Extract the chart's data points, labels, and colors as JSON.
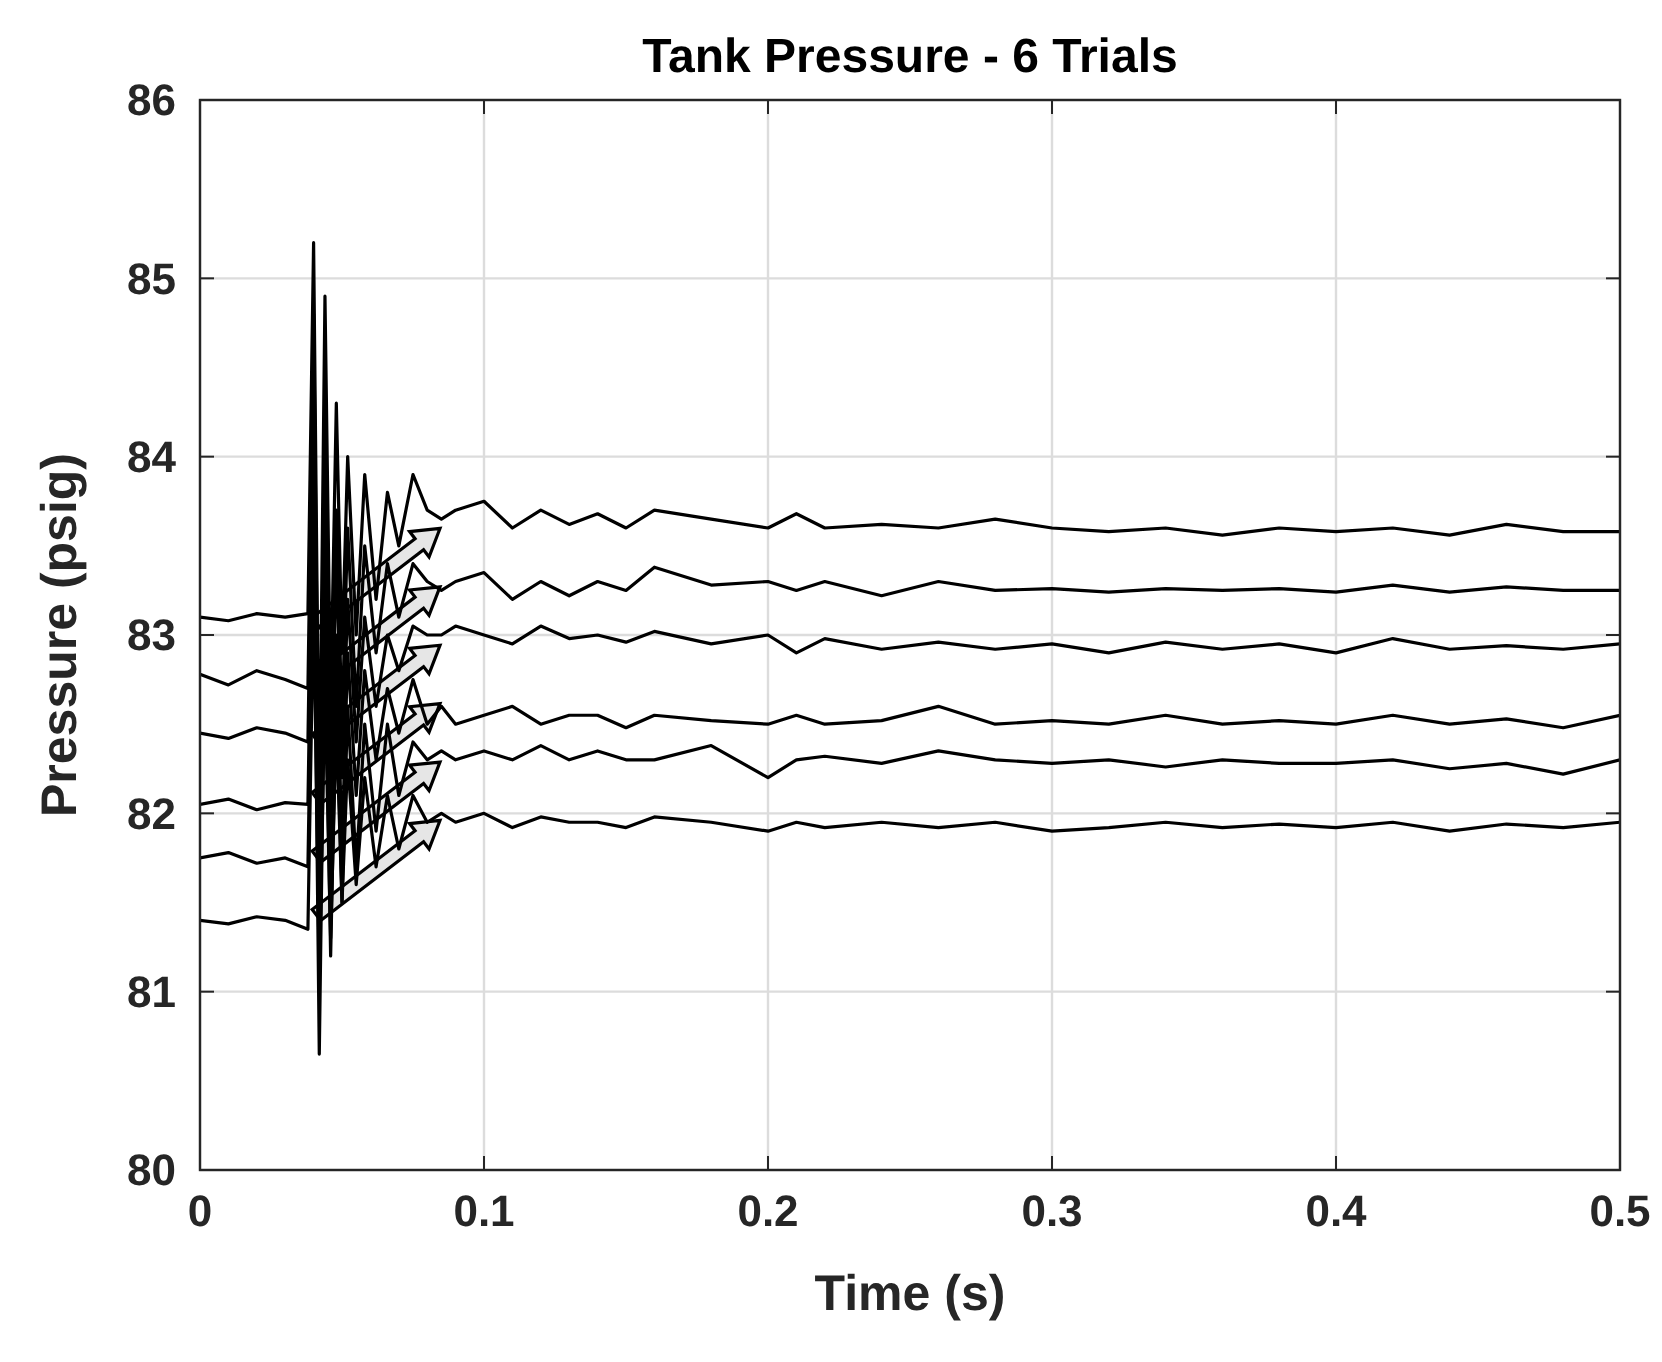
{
  "chart_data": {
    "type": "line",
    "title": "Tank Pressure - 6 Trials",
    "xlabel": "Time (s)",
    "ylabel": "Pressure (psig)",
    "xlim": [
      0,
      0.5
    ],
    "xticks": [
      0,
      0.1,
      0.2,
      0.3,
      0.4,
      0.5
    ],
    "ylim": [
      80,
      86
    ],
    "yticks": [
      80,
      81,
      82,
      83,
      84,
      85,
      86
    ],
    "grid": true,
    "line_style": "solid",
    "x": [
      0,
      0.01,
      0.02,
      0.03,
      0.038,
      0.04,
      0.042,
      0.044,
      0.046,
      0.048,
      0.05,
      0.052,
      0.055,
      0.058,
      0.062,
      0.066,
      0.07,
      0.075,
      0.08,
      0.085,
      0.09,
      0.1,
      0.11,
      0.12,
      0.13,
      0.14,
      0.15,
      0.16,
      0.18,
      0.2,
      0.21,
      0.22,
      0.24,
      0.26,
      0.28,
      0.3,
      0.32,
      0.34,
      0.36,
      0.38,
      0.4,
      0.42,
      0.44,
      0.46,
      0.48,
      0.5
    ],
    "series": [
      {
        "color": "#000000",
        "values": [
          83.1,
          83.08,
          83.12,
          83.1,
          83.12,
          85.2,
          82.0,
          84.9,
          82.6,
          84.3,
          82.9,
          84.0,
          83.0,
          83.9,
          83.2,
          83.8,
          83.5,
          83.9,
          83.7,
          83.65,
          83.7,
          83.75,
          83.6,
          83.7,
          83.62,
          83.68,
          83.6,
          83.7,
          83.65,
          83.6,
          83.68,
          83.6,
          83.62,
          83.6,
          83.65,
          83.6,
          83.58,
          83.6,
          83.56,
          83.6,
          83.58,
          83.6,
          83.56,
          83.62,
          83.58,
          83.58
        ]
      },
      {
        "color": "#000000",
        "values": [
          82.78,
          82.72,
          82.8,
          82.75,
          82.7,
          84.8,
          81.8,
          84.3,
          82.2,
          83.7,
          82.5,
          83.6,
          82.6,
          83.5,
          82.9,
          83.4,
          83.1,
          83.4,
          83.3,
          83.25,
          83.3,
          83.35,
          83.2,
          83.3,
          83.22,
          83.3,
          83.25,
          83.38,
          83.28,
          83.3,
          83.25,
          83.3,
          83.22,
          83.3,
          83.25,
          83.26,
          83.24,
          83.26,
          83.25,
          83.26,
          83.24,
          83.28,
          83.24,
          83.27,
          83.25,
          83.25
        ]
      },
      {
        "color": "#000000",
        "values": [
          82.45,
          82.42,
          82.48,
          82.45,
          82.4,
          84.4,
          81.4,
          83.8,
          81.9,
          83.5,
          82.2,
          83.2,
          82.4,
          83.1,
          82.6,
          83.0,
          82.8,
          83.05,
          83.0,
          83.0,
          83.05,
          83.0,
          82.95,
          83.05,
          82.98,
          83.0,
          82.96,
          83.02,
          82.95,
          83.0,
          82.9,
          82.98,
          82.92,
          82.96,
          82.92,
          82.95,
          82.9,
          82.96,
          82.92,
          82.95,
          82.9,
          82.98,
          82.92,
          82.94,
          82.92,
          82.95
        ]
      },
      {
        "color": "#000000",
        "values": [
          82.05,
          82.08,
          82.02,
          82.06,
          82.05,
          84.0,
          81.1,
          83.4,
          81.6,
          83.0,
          81.8,
          82.9,
          82.1,
          82.8,
          82.3,
          82.7,
          82.45,
          82.75,
          82.5,
          82.6,
          82.5,
          82.55,
          82.6,
          82.5,
          82.55,
          82.55,
          82.48,
          82.55,
          82.52,
          82.5,
          82.55,
          82.5,
          82.52,
          82.6,
          82.5,
          82.52,
          82.5,
          82.55,
          82.5,
          82.52,
          82.5,
          82.55,
          82.5,
          82.53,
          82.48,
          82.55
        ]
      },
      {
        "color": "#000000",
        "values": [
          81.75,
          81.78,
          81.72,
          81.75,
          81.7,
          83.6,
          80.65,
          83.0,
          81.2,
          82.7,
          81.5,
          82.6,
          81.7,
          82.5,
          81.9,
          82.5,
          82.1,
          82.4,
          82.3,
          82.35,
          82.3,
          82.35,
          82.3,
          82.38,
          82.3,
          82.35,
          82.3,
          82.3,
          82.38,
          82.2,
          82.3,
          82.32,
          82.28,
          82.35,
          82.3,
          82.28,
          82.3,
          82.26,
          82.3,
          82.28,
          82.28,
          82.3,
          82.25,
          82.28,
          82.22,
          82.3
        ]
      },
      {
        "color": "#000000",
        "values": [
          81.4,
          81.38,
          81.42,
          81.4,
          81.35,
          83.2,
          81.1,
          82.7,
          81.3,
          82.5,
          81.5,
          82.3,
          81.6,
          82.2,
          81.7,
          82.1,
          81.8,
          82.1,
          81.95,
          82.0,
          81.95,
          82.0,
          81.92,
          81.98,
          81.95,
          81.95,
          81.92,
          81.98,
          81.95,
          81.9,
          81.95,
          81.92,
          81.95,
          81.92,
          81.95,
          81.9,
          81.92,
          81.95,
          81.92,
          81.94,
          81.92,
          81.95,
          81.9,
          81.94,
          81.92,
          81.95
        ]
      }
    ]
  }
}
